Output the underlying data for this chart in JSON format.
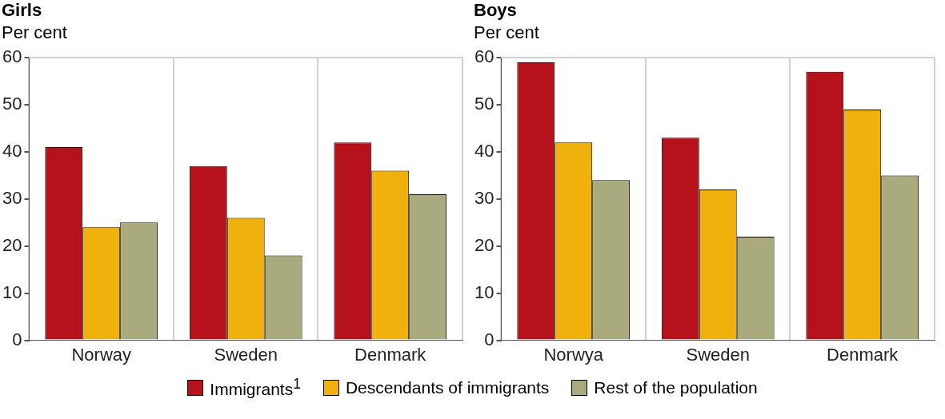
{
  "chart_data": [
    {
      "type": "bar",
      "title": "Girls",
      "ylabel": "Per cent",
      "categories": [
        "Norway",
        "Sweden",
        "Denmark"
      ],
      "ylim": [
        0,
        60
      ],
      "yticks": [
        0,
        10,
        20,
        30,
        40,
        50,
        60
      ],
      "grid": "x",
      "legend": "bottom",
      "series": [
        {
          "name": "Immigrants$^{1}$",
          "color": "#b5121b",
          "values": [
            41,
            37,
            42
          ]
        },
        {
          "name": "Descendants of immigrants",
          "color": "#f0b10d",
          "values": [
            24,
            26,
            36
          ]
        },
        {
          "name": "Rest of the population",
          "color": "#a9ab7e",
          "values": [
            25,
            18,
            31
          ]
        }
      ]
    },
    {
      "type": "bar",
      "title": "Boys",
      "ylabel": "Per cent",
      "categories": [
        "Norwya",
        "Sweden",
        "Denmark"
      ],
      "ylim": [
        0,
        60
      ],
      "yticks": [
        0,
        10,
        20,
        30,
        40,
        50,
        60
      ],
      "grid": "x",
      "series": [
        {
          "color": "#b5121b",
          "values": [
            59,
            43,
            57
          ]
        },
        {
          "color": "#f0b10d",
          "values": [
            42,
            32,
            49
          ]
        },
        {
          "color": "#a9ab7e",
          "values": [
            34,
            22,
            35
          ]
        }
      ]
    }
  ]
}
